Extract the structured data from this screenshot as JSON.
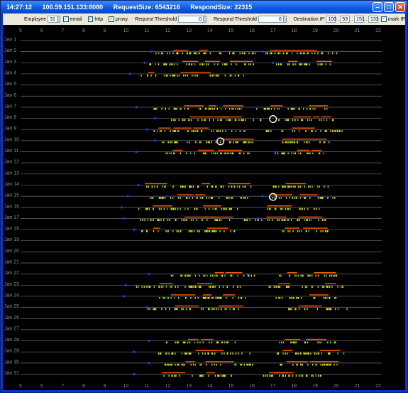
{
  "window": {
    "time": "14:27:12",
    "address": "100.59.151.133:8080",
    "request_size": "RequestSize: 6543216",
    "respond_size": "RespondSize: 22315"
  },
  "toolbar": {
    "employee_label": "Employee",
    "employee_value": "31",
    "email_label": "email",
    "http_label": "http",
    "proxy_label": "proxy",
    "request_threshold_label": "Request Threshold",
    "request_threshold_value": "0",
    "respond_threshold_label": "Respond Threshold",
    "respond_threshold_value": "0",
    "destination_ip_label": "Destination IP",
    "ip_octets": [
      "100",
      "59",
      "151",
      "133"
    ],
    "mark_ip_label": "mark IP",
    "email_checked": true,
    "http_checked": true,
    "proxy_checked": true,
    "mark_ip_checked": true
  },
  "chart_data": {
    "type": "scatter",
    "x_ticks": [
      "5",
      "6",
      "7",
      "8",
      "9",
      "10",
      "11",
      "12",
      "13",
      "14",
      "15",
      "16",
      "17",
      "18",
      "19",
      "20",
      "21",
      "22"
    ],
    "xlim": [
      5,
      22
    ],
    "days": [
      "Jan 1",
      "Jan 2",
      "Jan 3",
      "Jan 4",
      "Jan 5",
      "Jan 6",
      "Jan 7",
      "Jan 8",
      "Jan 9",
      "Jan 10",
      "Jan 11",
      "Jan 12",
      "Jan 13",
      "Jan 14",
      "Jan 15",
      "Jan 16",
      "Jan 17",
      "Jan 18",
      "Jan 19",
      "Jan 20",
      "Jan 21",
      "Jan 22",
      "Jan 23",
      "Jan 24",
      "Jan 25",
      "Jan 26",
      "Jan 27",
      "Jan 28",
      "Jan 29",
      "Jan 30",
      "Jan 31"
    ],
    "active_days": [
      {
        "day": "Jan 2",
        "ranges": [
          [
            11.3,
            16.2
          ],
          [
            16.6,
            20.4
          ]
        ],
        "marks": [
          11.2,
          16.5
        ]
      },
      {
        "day": "Jan 3",
        "ranges": [
          [
            11.0,
            16.1
          ],
          [
            17.0,
            19.8
          ]
        ],
        "marks": [
          10.9,
          17.0
        ]
      },
      {
        "day": "Jan 4",
        "ranges": [
          [
            10.7,
            15.6
          ]
        ],
        "marks": [
          10.2
        ]
      },
      {
        "day": "Jan 7",
        "ranges": [
          [
            11.3,
            15.6
          ],
          [
            16.2,
            19.6
          ]
        ],
        "marks": [
          10.5
        ]
      },
      {
        "day": "Jan 8",
        "ranges": [
          [
            11.7,
            16.5
          ],
          [
            17.2,
            20.0
          ]
        ],
        "marks": [
          11.4
        ]
      },
      {
        "day": "Jan 9",
        "ranges": [
          [
            11.2,
            15.8
          ],
          [
            16.6,
            20.4
          ]
        ],
        "marks": [
          11.0
        ]
      },
      {
        "day": "Jan 10",
        "ranges": [
          [
            11.7,
            16.1
          ],
          [
            17.3,
            19.8
          ]
        ],
        "marks": [
          11.4
        ]
      },
      {
        "day": "Jan 11",
        "ranges": [
          [
            11.8,
            15.9
          ],
          [
            17.0,
            19.5
          ]
        ],
        "marks": [
          10.5,
          17.1
        ]
      },
      {
        "day": "Jan 14",
        "ranges": [
          [
            10.9,
            16.0
          ],
          [
            16.6,
            19.8
          ]
        ],
        "marks": [
          10.6
        ]
      },
      {
        "day": "Jan 15",
        "ranges": [
          [
            11.0,
            15.8
          ],
          [
            16.8,
            20.0
          ]
        ],
        "marks": [
          10.1,
          16.5
        ]
      },
      {
        "day": "Jan 16",
        "ranges": [
          [
            10.5,
            15.3
          ],
          [
            16.6,
            19.2
          ]
        ],
        "marks": [
          9.8
        ]
      },
      {
        "day": "Jan 17",
        "ranges": [
          [
            10.6,
            15.1
          ],
          [
            15.6,
            19.8
          ]
        ],
        "marks": [
          9.9,
          16.3
        ]
      },
      {
        "day": "Jan 18",
        "ranges": [
          [
            10.7,
            15.2
          ],
          [
            17.4,
            19.6
          ]
        ],
        "marks": [
          10.4
        ]
      },
      {
        "day": "Jan 22",
        "ranges": [
          [
            12.1,
            16.1
          ],
          [
            17.2,
            20.0
          ]
        ],
        "marks": [
          11.1,
          15.8
        ]
      },
      {
        "day": "Jan 23",
        "ranges": [
          [
            10.4,
            15.6
          ],
          [
            16.6,
            20.4
          ]
        ],
        "marks": [
          10.0
        ]
      },
      {
        "day": "Jan 24",
        "ranges": [
          [
            11.5,
            15.9
          ],
          [
            17.1,
            20.0
          ]
        ],
        "marks": [
          9.9
        ]
      },
      {
        "day": "Jan 25",
        "ranges": [
          [
            11.0,
            15.6
          ],
          [
            17.6,
            20.5
          ]
        ],
        "marks": [
          11.0
        ]
      },
      {
        "day": "Jan 28",
        "ranges": [
          [
            11.8,
            15.3
          ],
          [
            17.1,
            20.0
          ]
        ],
        "marks": [
          11.1
        ]
      },
      {
        "day": "Jan 29",
        "ranges": [
          [
            11.5,
            16.0
          ],
          [
            17.0,
            20.4
          ]
        ],
        "marks": [
          10.4
        ]
      },
      {
        "day": "Jan 30",
        "ranges": [
          [
            11.8,
            16.0
          ],
          [
            17.1,
            20.2
          ]
        ],
        "marks": [
          11.1
        ]
      },
      {
        "day": "Jan 31",
        "ranges": [
          [
            11.7,
            15.2
          ],
          [
            16.3,
            19.3
          ]
        ],
        "marks": [
          10.4
        ]
      }
    ],
    "circled": [
      {
        "day": "Jan 8",
        "x": 17.0
      },
      {
        "day": "Jan 10",
        "x": 14.5
      },
      {
        "day": "Jan 15",
        "x": 17.0
      }
    ],
    "colors": {
      "background": "#000000",
      "baseline": "#6e6e6e",
      "request": "#e6e600",
      "request_alt": "#7fd600",
      "respond": "#ff5a00",
      "marker": "#1f3cff",
      "circle": "#ffffff",
      "label": "#8c8c8c"
    }
  }
}
